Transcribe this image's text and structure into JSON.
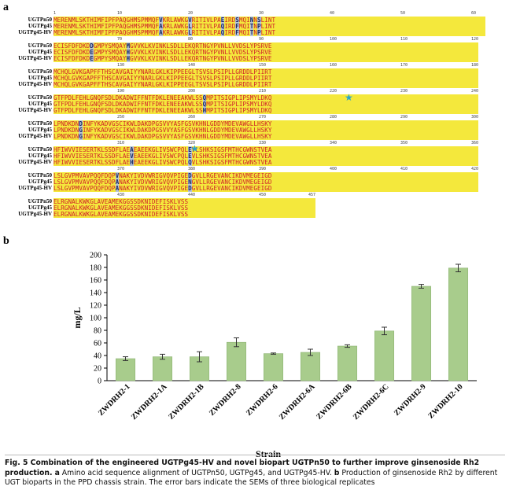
{
  "panel_a_label": "a",
  "panel_b_label": "b",
  "alignment": {
    "names": [
      "UGTPn50",
      "UGTPg45",
      "UGTPg45-HV"
    ],
    "blocks": [
      {
        "ruler": [
          "1",
          "10",
          "20",
          "30",
          "40",
          "50",
          "60"
        ],
        "rows": [
          "MERENMLSKTHIMFIPFPAQGHMSPMMQFVKRLAWKGVRITIVLPAEIRDSMQINNSLINT",
          "MERENMLSKTHIMFIPFPAQGHMSPMMQFAKRLAWKGLRITIVLPAQIRDFMQITNPLINT",
          "MERENMLSKTHIMFIPFPAQGHMSPMMQFAKRLAWKGLRITIVLPAQIRDFMQITNPLINT"
        ]
      },
      {
        "ruler": [
          "70",
          "80",
          "90",
          "100",
          "110",
          "120"
        ],
        "rows": [
          "ECISFDFDKDDGMPYSMQAYMGVVKLKVINKLSDLLEKQRTNGYPVNLLVVDSLYPSRVE",
          "ECISFDFDKDEGMPYSMQAYHGVVKLKVINKLSDLLEKQRTNGYPVNLLVVDSLYPSRVE",
          "ECISFDFDKDEGMPYSMQAYHGVVKLKVINKLSDLLEKQRTNGYPVNLLVVDSLYPSRVE"
        ]
      },
      {
        "ruler": [
          "130",
          "140",
          "150",
          "160",
          "170",
          "180"
        ],
        "rows": [
          "MCHQLGVKGAPFFTHSCAVGAIYYNARLGKLKIPPEEGLTSVSLPSIPLLGRDDLPIIRT",
          "MCHQLGVKGAPFFTHSCAVGAIYYNARLGKLKIPPEEGLTSVSLPSIPLLGRDDLPIIRT",
          "MCHQLGVKGAPFFTHSCAVGAIYYNARLGKLKIPPEEGLTSVSLPSIPLLGRDDLPIIRT"
        ]
      },
      {
        "ruler": [
          "190",
          "200",
          "210",
          "220",
          "230",
          "240"
        ],
        "rows": [
          "GTFPDLFEHLGNQFSDLDKADWIFFNTFDKLENEEAKWLSSQMPITSIGPLIPSMYLDKQ",
          "GTFPDLFEHLGNQFSDLDKADWIFFNTFDKLENEEAKWLSSQMPITSIGPLIPSMYLDKQ",
          "GTFPDLFEHLGNQFSDLDKADWIFFNTFDKLENEEAKWLSSHMPITSIGPLIPSMYLDKQ"
        ]
      },
      {
        "ruler": [
          "250",
          "260",
          "270",
          "280",
          "290",
          "300"
        ],
        "rows": [
          "LPNDKDNDINFYKADVGSCIKWLDAKDPGSVVYASFGSVKHNLGDDYMDEVAWGLLHSKY",
          "LPNDKDNGINFYKADVGSCIKWLDAKDPGSVVYASFGSVKHNLGDDYMDEVAWGLLHSKY",
          "LPNDKDNGINFYKADVGSCIKWLDAKDPGSVVYASFGSVKHNLGDDYMDEVAWGLLHSKY"
        ]
      },
      {
        "ruler": [
          "310",
          "320",
          "330",
          "340",
          "350",
          "360"
        ],
        "rows": [
          "HFIWVVIESERTKLSSDFLAEAEAEEKGLIVSWCPQLEVLSHKSIGSFMTHCGWNSTVEA",
          "HFIWVVIESERTKLSSDFLAEVEAEEKGLIVSWCPQLEVLSHKSIGSFMTHCGWNSTVEA",
          "HFIWVVIESERTKLSSDFLAEHEAEEKGLIVSWCPQLQVLSHKSIGSFMTHCGWNSTVEA"
        ]
      },
      {
        "ruler": [
          "370",
          "380",
          "390",
          "400",
          "410",
          "420"
        ],
        "rows": [
          "LSLGVPMVAVPQQFDQPVNAKYIVDVWRIGVQVPIGEDGVLLRGEVANCIKDVMEGEIGD",
          "LSLGVPMVAVPQQFDQPANAKYIVDVWRIGVQVPIGENGVLLRGEVANCIKDVMEGEIGD",
          "LSLGVPMVAVPQQFDQPANAKYIVDVWRIGVQVPIGEDGVLLRGEVANCIKDVMEGEIGD"
        ]
      },
      {
        "ruler": [
          "430",
          "440",
          "450",
          "457"
        ],
        "rows": [
          "ELRGNALKWKGLAVEAMEKGGSSDKNIDEFISKLVSS",
          "ELRGNALKWKGLAVEAMEKGGSSDKNIDEFISKLVSS",
          "ELRGNALKWKGLAVEAMEKGGSSDKNIDEFISKLVSS"
        ]
      }
    ]
  },
  "chart_data": {
    "type": "bar",
    "title": "",
    "xlabel": "Strain",
    "ylabel": "mg/L",
    "ylim": [
      0,
      200
    ],
    "yticks": [
      0,
      20,
      40,
      60,
      80,
      100,
      120,
      140,
      160,
      180,
      200
    ],
    "categories": [
      "ZWDRH2-1",
      "ZWDRH2-1A",
      "ZWDRH2-1B",
      "ZWDRH2-8",
      "ZWDRH2-6",
      "ZWDRH2-6A",
      "ZWDRH2-6B",
      "ZWDRH2-6C",
      "ZWDRH2-9",
      "ZWDRH2-10"
    ],
    "values": [
      35,
      38,
      38,
      61,
      43,
      45,
      55,
      79,
      150,
      179
    ],
    "errors": [
      3,
      4,
      8,
      7,
      1,
      5,
      2,
      6,
      3,
      6
    ],
    "grid": false,
    "bar_color": "#a8cc8c",
    "bar_edge_color": "#8fb575"
  },
  "caption": {
    "title": "Fig. 5 Combination of the engineered UGTPg45-HV and novel biopart UGTPn50 to further improve ginsenoside Rh2 production.",
    "a_label": "a",
    "a_text": " Amino acid sequence alignment of UGTPn50, UGTPg45, and UGTPg45-HV. ",
    "b_label": "b",
    "b_text": " Production of ginsenoside Rh2 by different UGT bioparts in the PPD chassis strain. The error bars indicate the SEMs of three biological replicates"
  }
}
